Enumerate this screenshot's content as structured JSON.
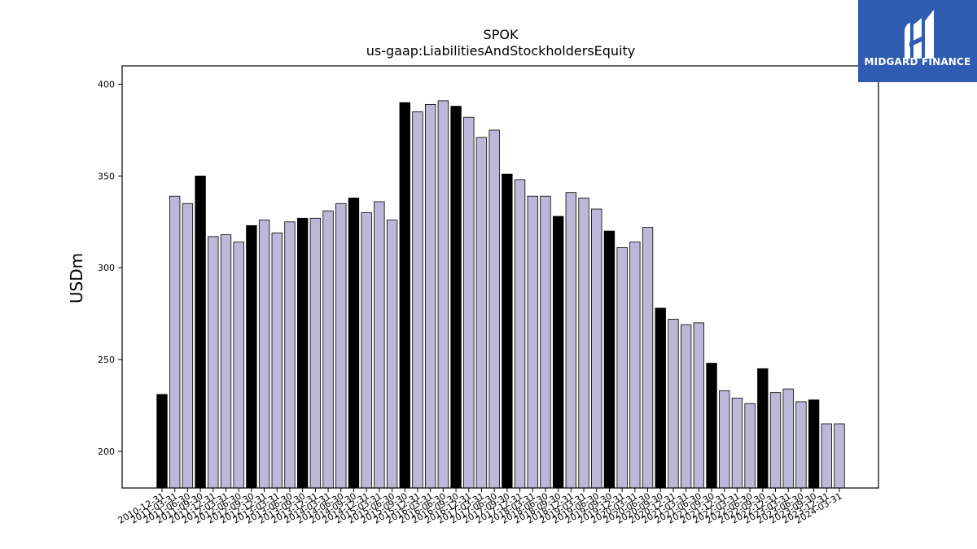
{
  "chart_data": {
    "type": "bar",
    "title": "SPOK",
    "subtitle": "us-gaap:LiabilitiesAndStockholdersEquity",
    "ylabel": "USDm",
    "xlabel": "",
    "ylim": [
      180,
      410
    ],
    "yticks": [
      200,
      250,
      300,
      350,
      400
    ],
    "grid": false,
    "colors": {
      "annual": "#000000",
      "quarterly": "#bcb8d8",
      "edge": "#000000"
    },
    "categories": [
      "2010-12-31",
      "2011-03-31",
      "2011-06-30",
      "2011-09-30",
      "2011-12-31",
      "2012-03-31",
      "2012-06-30",
      "2012-09-30",
      "2012-12-31",
      "2013-03-31",
      "2013-06-30",
      "2013-09-30",
      "2013-12-31",
      "2014-03-31",
      "2014-06-30",
      "2014-09-30",
      "2014-12-31",
      "2015-03-31",
      "2015-06-30",
      "2015-09-30",
      "2015-12-31",
      "2016-03-31",
      "2016-06-30",
      "2016-09-30",
      "2016-12-31",
      "2017-03-31",
      "2017-06-30",
      "2017-09-30",
      "2017-12-31",
      "2018-03-31",
      "2018-06-30",
      "2018-09-30",
      "2018-12-31",
      "2019-03-31",
      "2019-06-30",
      "2019-09-30",
      "2019-12-31",
      "2020-03-31",
      "2020-06-30",
      "2020-09-30",
      "2020-12-31",
      "2021-03-31",
      "2021-06-30",
      "2021-09-30",
      "2021-12-31",
      "2022-03-31",
      "2022-06-30",
      "2022-09-30",
      "2022-12-31",
      "2023-03-31",
      "2023-06-30",
      "2023-09-30",
      "2023-12-31",
      "2024-03-31"
    ],
    "values": [
      231,
      339,
      335,
      350,
      317,
      318,
      314,
      323,
      326,
      319,
      325,
      327,
      327,
      331,
      335,
      338,
      330,
      336,
      326,
      390,
      385,
      389,
      391,
      388,
      382,
      371,
      375,
      351,
      348,
      339,
      339,
      328,
      341,
      338,
      332,
      320,
      311,
      314,
      322,
      278,
      272,
      269,
      270,
      248,
      233,
      229,
      226,
      245,
      232,
      234,
      227,
      228,
      215,
      215
    ],
    "annual_flags": [
      1,
      0,
      0,
      1,
      0,
      0,
      0,
      1,
      0,
      0,
      0,
      1,
      0,
      0,
      0,
      1,
      0,
      0,
      0,
      1,
      0,
      0,
      0,
      1,
      0,
      0,
      0,
      1,
      0,
      0,
      0,
      1,
      0,
      0,
      0,
      1,
      0,
      0,
      0,
      1,
      0,
      0,
      0,
      1,
      0,
      0,
      0,
      1,
      0,
      0,
      0,
      1,
      0,
      0
    ]
  },
  "branding": {
    "name": "MIDGARD FINANCE",
    "logo_icon": "midgard-logo-icon"
  }
}
